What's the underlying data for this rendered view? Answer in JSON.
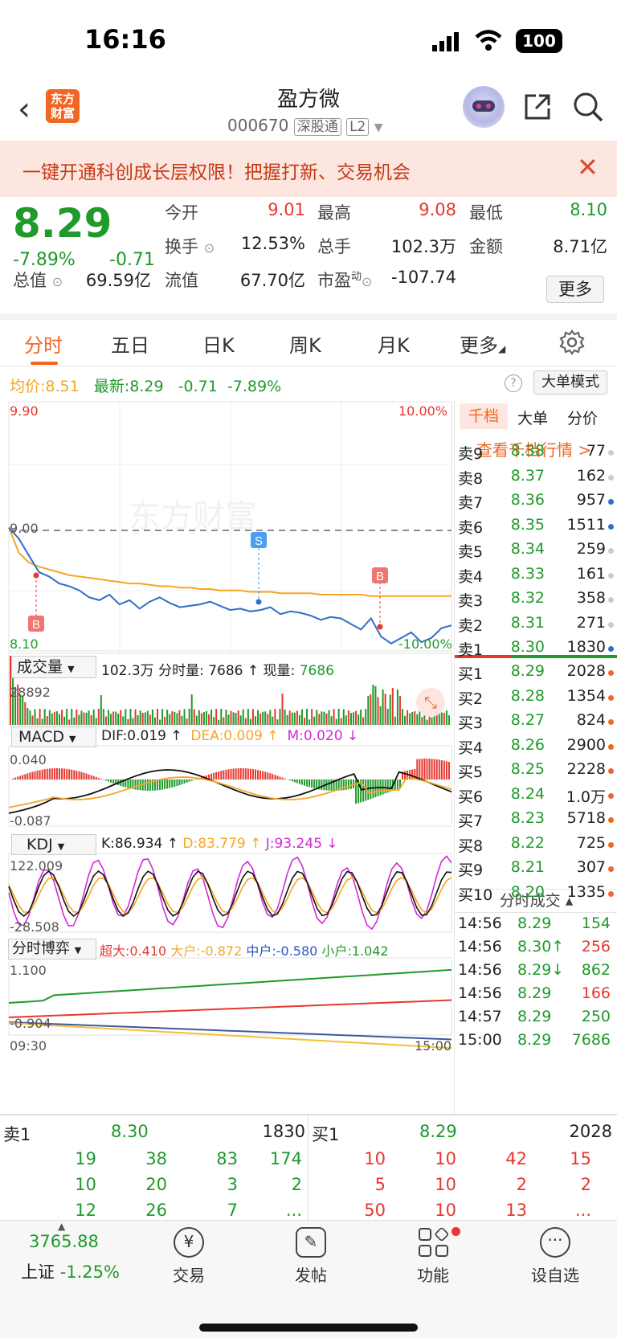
{
  "status_bar": {
    "time": "16:16",
    "battery": "100"
  },
  "header": {
    "stock_name": "盈方微",
    "stock_code": "000670",
    "tag1": "深股通",
    "tag2": "L2",
    "logo": "东方财富"
  },
  "banner": {
    "text": "一键开通科创成长层权限！把握打新、交易机会"
  },
  "quote": {
    "price": "8.29",
    "change_pct": "-7.89%",
    "change": "-0.71",
    "fields": [
      {
        "label": "今开",
        "value": "9.01",
        "color": "#e8372f"
      },
      {
        "label": "最高",
        "value": "9.08",
        "color": "#e8372f"
      },
      {
        "label": "最低",
        "value": "8.10",
        "color": "#1f9a2b"
      },
      {
        "label": "换手",
        "value": "12.53%",
        "color": "#222"
      },
      {
        "label": "总手",
        "value": "102.3万",
        "color": "#222"
      },
      {
        "label": "金额",
        "value": "8.71亿",
        "color": "#222"
      },
      {
        "label": "总值",
        "value": "69.59亿",
        "color": "#222"
      },
      {
        "label": "流值",
        "value": "67.70亿",
        "color": "#222"
      },
      {
        "label": "市盈",
        "value": "-107.74",
        "color": "#222"
      }
    ],
    "pe_sup": "动",
    "more": "更多"
  },
  "tabs": [
    "分时",
    "五日",
    "日K",
    "周K",
    "月K",
    "更多"
  ],
  "info": {
    "avg_label": "均价:",
    "avg": "8.51",
    "latest_label": "最新:",
    "latest": "8.29",
    "chg": "-0.71",
    "pct": "-7.89%",
    "mode_btn": "大单模式"
  },
  "chart_data": {
    "type": "line",
    "price_axis": {
      "max": "9.90",
      "min": "8.10",
      "prev_close": "9.00",
      "max_pct": "10.00%",
      "min_pct": "-10.00%"
    },
    "series": [
      {
        "values": [
          9.0,
          8.92,
          8.8,
          8.68,
          8.65,
          8.6,
          8.58,
          8.55,
          8.5,
          8.48,
          8.52,
          8.45,
          8.48,
          8.42,
          8.47,
          8.5,
          8.46,
          8.43,
          8.44,
          8.45,
          8.47,
          8.44,
          8.41,
          8.42,
          8.4,
          8.41,
          8.43,
          8.38,
          8.4,
          8.39,
          8.37,
          8.34,
          8.36,
          8.35,
          8.31,
          8.27,
          8.35,
          8.22,
          8.17,
          8.21,
          8.25,
          8.18,
          8.21,
          8.28,
          8.3
        ]
      },
      {
        "values": [
          9.0,
          8.82,
          8.75,
          8.72,
          8.7,
          8.68,
          8.66,
          8.65,
          8.64,
          8.63,
          8.62,
          8.61,
          8.6,
          8.6,
          8.59,
          8.58,
          8.58,
          8.57,
          8.57,
          8.56,
          8.56,
          8.55,
          8.55,
          8.55,
          8.54,
          8.54,
          8.54,
          8.53,
          8.53,
          8.53,
          8.53,
          8.52,
          8.52,
          8.52,
          8.52,
          8.52,
          8.51,
          8.51,
          8.51,
          8.51,
          8.51,
          8.51,
          8.51,
          8.51,
          8.51
        ]
      }
    ],
    "markers": [
      {
        "label": "B"
      },
      {
        "label": "S"
      },
      {
        "label": "B"
      }
    ],
    "watermark": "东方财富",
    "volume": {
      "label": "成交量",
      "total": "102.3万",
      "tick_label": "分时量:",
      "tick": "7686",
      "now_label": "现量:",
      "now": "7686",
      "max": "28892"
    },
    "macd": {
      "label": "MACD",
      "dif": "DIF:0.019 ↑",
      "dea": "DEA:0.009 ↑",
      "m": "M:0.020 ↓",
      "max": "0.040",
      "min": "-0.087"
    },
    "kdj": {
      "label": "KDJ",
      "k": "K:86.934 ↑",
      "d": "D:83.779 ↑",
      "j": "J:93.245 ↓",
      "max": "122.009",
      "min": "-28.508"
    },
    "game": {
      "label": "分时博弈",
      "super": "超大:0.410",
      "big": "大户:-0.872",
      "mid": "中户:-0.580",
      "small": "小户:1.042",
      "max": "1.100",
      "min": "-0.904",
      "t_start": "09:30",
      "t_end": "15:00"
    }
  },
  "side": {
    "tabs": [
      "千档",
      "大单",
      "分价"
    ],
    "link": "查看千档行情 >",
    "asks": [
      {
        "label": "卖9",
        "price": "8.38",
        "vol": "77"
      },
      {
        "label": "卖8",
        "price": "8.37",
        "vol": "162"
      },
      {
        "label": "卖7",
        "price": "8.36",
        "vol": "957"
      },
      {
        "label": "卖6",
        "price": "8.35",
        "vol": "1511"
      },
      {
        "label": "卖5",
        "price": "8.34",
        "vol": "259"
      },
      {
        "label": "卖4",
        "price": "8.33",
        "vol": "161"
      },
      {
        "label": "卖3",
        "price": "8.32",
        "vol": "358"
      },
      {
        "label": "卖2",
        "price": "8.31",
        "vol": "271"
      },
      {
        "label": "卖1",
        "price": "8.30",
        "vol": "1830"
      }
    ],
    "bids": [
      {
        "label": "买1",
        "price": "8.29",
        "vol": "2028"
      },
      {
        "label": "买2",
        "price": "8.28",
        "vol": "1354"
      },
      {
        "label": "买3",
        "price": "8.27",
        "vol": "824"
      },
      {
        "label": "买4",
        "price": "8.26",
        "vol": "2900"
      },
      {
        "label": "买5",
        "price": "8.25",
        "vol": "2228"
      },
      {
        "label": "买6",
        "price": "8.24",
        "vol": "1.0万"
      },
      {
        "label": "买7",
        "price": "8.23",
        "vol": "5718"
      },
      {
        "label": "买8",
        "price": "8.22",
        "vol": "725"
      },
      {
        "label": "买9",
        "price": "8.21",
        "vol": "307"
      },
      {
        "label": "买10",
        "price": "8.20",
        "vol": "1335"
      }
    ],
    "ticks_title": "分时成交",
    "ticks": [
      {
        "time": "14:56",
        "price": "8.29",
        "vol": "154",
        "vcolor": "#1f9a2b"
      },
      {
        "time": "14:56",
        "price": "8.30↑",
        "vol": "256",
        "vcolor": "#e8372f"
      },
      {
        "time": "14:56",
        "price": "8.29↓",
        "vol": "862",
        "vcolor": "#1f9a2b"
      },
      {
        "time": "14:56",
        "price": "8.29",
        "vol": "166",
        "vcolor": "#e8372f"
      },
      {
        "time": "14:57",
        "price": "8.29",
        "vol": "250",
        "vcolor": "#1f9a2b"
      },
      {
        "time": "15:00",
        "price": "8.29",
        "vol": "7686",
        "vcolor": "#1f9a2b"
      }
    ]
  },
  "book": {
    "sell_label": "卖1",
    "sell_price": "8.30",
    "sell_vol": "1830",
    "buy_label": "买1",
    "buy_price": "8.29",
    "buy_vol": "2028",
    "sell_rows": [
      [
        "19",
        "38",
        "83",
        "174"
      ],
      [
        "10",
        "20",
        "3",
        "2"
      ],
      [
        "12",
        "26",
        "7",
        "..."
      ]
    ],
    "buy_rows": [
      [
        "10",
        "10",
        "42",
        "15"
      ],
      [
        "5",
        "10",
        "2",
        "2"
      ],
      [
        "50",
        "10",
        "13",
        "..."
      ]
    ]
  },
  "nav": {
    "index_value": "3765.88",
    "index_name": "上证",
    "index_pct": "-1.25%",
    "items": [
      "交易",
      "发帖",
      "功能",
      "设自选"
    ]
  }
}
